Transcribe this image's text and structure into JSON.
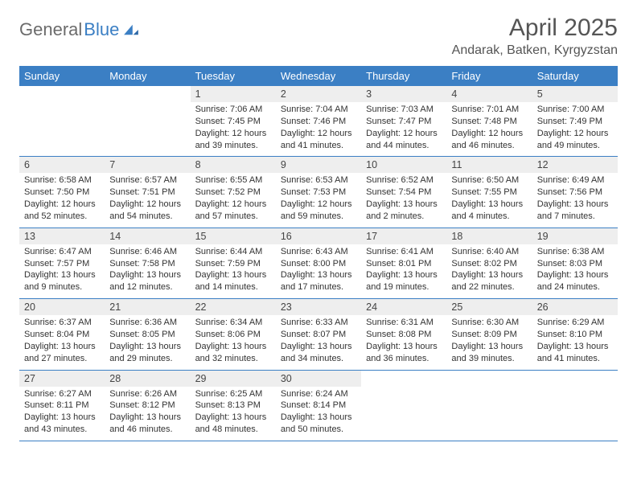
{
  "logo": {
    "text1": "General",
    "text2": "Blue"
  },
  "title": "April 2025",
  "location": "Andarak, Batken, Kyrgyzstan",
  "colors": {
    "header_bg": "#3b7fc4",
    "header_text": "#ffffff",
    "daynum_bg": "#eeeeee",
    "border": "#3b7fc4",
    "text": "#333333",
    "page_bg": "#ffffff"
  },
  "days_of_week": [
    "Sunday",
    "Monday",
    "Tuesday",
    "Wednesday",
    "Thursday",
    "Friday",
    "Saturday"
  ],
  "layout": {
    "columns": 7,
    "rows": 5,
    "first_day_col": 2
  },
  "weeks": [
    [
      null,
      null,
      {
        "n": "1",
        "sr": "Sunrise: 7:06 AM",
        "ss": "Sunset: 7:45 PM",
        "d1": "Daylight: 12 hours",
        "d2": "and 39 minutes."
      },
      {
        "n": "2",
        "sr": "Sunrise: 7:04 AM",
        "ss": "Sunset: 7:46 PM",
        "d1": "Daylight: 12 hours",
        "d2": "and 41 minutes."
      },
      {
        "n": "3",
        "sr": "Sunrise: 7:03 AM",
        "ss": "Sunset: 7:47 PM",
        "d1": "Daylight: 12 hours",
        "d2": "and 44 minutes."
      },
      {
        "n": "4",
        "sr": "Sunrise: 7:01 AM",
        "ss": "Sunset: 7:48 PM",
        "d1": "Daylight: 12 hours",
        "d2": "and 46 minutes."
      },
      {
        "n": "5",
        "sr": "Sunrise: 7:00 AM",
        "ss": "Sunset: 7:49 PM",
        "d1": "Daylight: 12 hours",
        "d2": "and 49 minutes."
      }
    ],
    [
      {
        "n": "6",
        "sr": "Sunrise: 6:58 AM",
        "ss": "Sunset: 7:50 PM",
        "d1": "Daylight: 12 hours",
        "d2": "and 52 minutes."
      },
      {
        "n": "7",
        "sr": "Sunrise: 6:57 AM",
        "ss": "Sunset: 7:51 PM",
        "d1": "Daylight: 12 hours",
        "d2": "and 54 minutes."
      },
      {
        "n": "8",
        "sr": "Sunrise: 6:55 AM",
        "ss": "Sunset: 7:52 PM",
        "d1": "Daylight: 12 hours",
        "d2": "and 57 minutes."
      },
      {
        "n": "9",
        "sr": "Sunrise: 6:53 AM",
        "ss": "Sunset: 7:53 PM",
        "d1": "Daylight: 12 hours",
        "d2": "and 59 minutes."
      },
      {
        "n": "10",
        "sr": "Sunrise: 6:52 AM",
        "ss": "Sunset: 7:54 PM",
        "d1": "Daylight: 13 hours",
        "d2": "and 2 minutes."
      },
      {
        "n": "11",
        "sr": "Sunrise: 6:50 AM",
        "ss": "Sunset: 7:55 PM",
        "d1": "Daylight: 13 hours",
        "d2": "and 4 minutes."
      },
      {
        "n": "12",
        "sr": "Sunrise: 6:49 AM",
        "ss": "Sunset: 7:56 PM",
        "d1": "Daylight: 13 hours",
        "d2": "and 7 minutes."
      }
    ],
    [
      {
        "n": "13",
        "sr": "Sunrise: 6:47 AM",
        "ss": "Sunset: 7:57 PM",
        "d1": "Daylight: 13 hours",
        "d2": "and 9 minutes."
      },
      {
        "n": "14",
        "sr": "Sunrise: 6:46 AM",
        "ss": "Sunset: 7:58 PM",
        "d1": "Daylight: 13 hours",
        "d2": "and 12 minutes."
      },
      {
        "n": "15",
        "sr": "Sunrise: 6:44 AM",
        "ss": "Sunset: 7:59 PM",
        "d1": "Daylight: 13 hours",
        "d2": "and 14 minutes."
      },
      {
        "n": "16",
        "sr": "Sunrise: 6:43 AM",
        "ss": "Sunset: 8:00 PM",
        "d1": "Daylight: 13 hours",
        "d2": "and 17 minutes."
      },
      {
        "n": "17",
        "sr": "Sunrise: 6:41 AM",
        "ss": "Sunset: 8:01 PM",
        "d1": "Daylight: 13 hours",
        "d2": "and 19 minutes."
      },
      {
        "n": "18",
        "sr": "Sunrise: 6:40 AM",
        "ss": "Sunset: 8:02 PM",
        "d1": "Daylight: 13 hours",
        "d2": "and 22 minutes."
      },
      {
        "n": "19",
        "sr": "Sunrise: 6:38 AM",
        "ss": "Sunset: 8:03 PM",
        "d1": "Daylight: 13 hours",
        "d2": "and 24 minutes."
      }
    ],
    [
      {
        "n": "20",
        "sr": "Sunrise: 6:37 AM",
        "ss": "Sunset: 8:04 PM",
        "d1": "Daylight: 13 hours",
        "d2": "and 27 minutes."
      },
      {
        "n": "21",
        "sr": "Sunrise: 6:36 AM",
        "ss": "Sunset: 8:05 PM",
        "d1": "Daylight: 13 hours",
        "d2": "and 29 minutes."
      },
      {
        "n": "22",
        "sr": "Sunrise: 6:34 AM",
        "ss": "Sunset: 8:06 PM",
        "d1": "Daylight: 13 hours",
        "d2": "and 32 minutes."
      },
      {
        "n": "23",
        "sr": "Sunrise: 6:33 AM",
        "ss": "Sunset: 8:07 PM",
        "d1": "Daylight: 13 hours",
        "d2": "and 34 minutes."
      },
      {
        "n": "24",
        "sr": "Sunrise: 6:31 AM",
        "ss": "Sunset: 8:08 PM",
        "d1": "Daylight: 13 hours",
        "d2": "and 36 minutes."
      },
      {
        "n": "25",
        "sr": "Sunrise: 6:30 AM",
        "ss": "Sunset: 8:09 PM",
        "d1": "Daylight: 13 hours",
        "d2": "and 39 minutes."
      },
      {
        "n": "26",
        "sr": "Sunrise: 6:29 AM",
        "ss": "Sunset: 8:10 PM",
        "d1": "Daylight: 13 hours",
        "d2": "and 41 minutes."
      }
    ],
    [
      {
        "n": "27",
        "sr": "Sunrise: 6:27 AM",
        "ss": "Sunset: 8:11 PM",
        "d1": "Daylight: 13 hours",
        "d2": "and 43 minutes."
      },
      {
        "n": "28",
        "sr": "Sunrise: 6:26 AM",
        "ss": "Sunset: 8:12 PM",
        "d1": "Daylight: 13 hours",
        "d2": "and 46 minutes."
      },
      {
        "n": "29",
        "sr": "Sunrise: 6:25 AM",
        "ss": "Sunset: 8:13 PM",
        "d1": "Daylight: 13 hours",
        "d2": "and 48 minutes."
      },
      {
        "n": "30",
        "sr": "Sunrise: 6:24 AM",
        "ss": "Sunset: 8:14 PM",
        "d1": "Daylight: 13 hours",
        "d2": "and 50 minutes."
      },
      null,
      null,
      null
    ]
  ]
}
